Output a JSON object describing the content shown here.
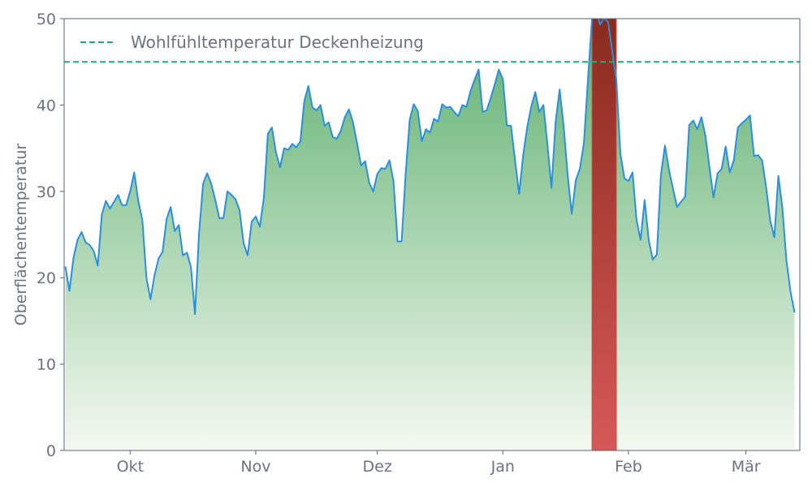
{
  "chart_data": {
    "type": "area",
    "title": "",
    "xlabel": "",
    "ylabel": "Oberflächentemperatur",
    "ylim": [
      0,
      50
    ],
    "y_ticks": [
      0,
      10,
      20,
      30,
      40,
      50
    ],
    "x_range": [
      "2023-09-15",
      "2024-03-14"
    ],
    "x_ticks": [
      {
        "date": "2023-10-01",
        "label": "Okt"
      },
      {
        "date": "2023-11-01",
        "label": "Nov"
      },
      {
        "date": "2023-12-01",
        "label": "Dez"
      },
      {
        "date": "2024-01-01",
        "label": "Jan"
      },
      {
        "date": "2024-02-01",
        "label": "Feb"
      },
      {
        "date": "2024-03-01",
        "label": "Mär"
      }
    ],
    "grid": false,
    "legend_position": "top-left",
    "reference_line": {
      "name": "Wohlfühltemperatur Deckenheizung",
      "y": 45,
      "color": "#1aaf7a",
      "style": "dashed"
    },
    "highlight": {
      "start": "2024-01-23",
      "end": "2024-01-29",
      "colors": [
        "#8a2b1e",
        "#d65858"
      ]
    },
    "line_color": "#2b8fe0",
    "fill_colors": [
      "#5aae6c",
      "#f4f9f0"
    ],
    "series": [
      {
        "values": [
          [
            "2023-09-15",
            21.3
          ],
          [
            "2023-09-16",
            18.5
          ],
          [
            "2023-09-17",
            22.3
          ],
          [
            "2023-09-18",
            24.4
          ],
          [
            "2023-09-19",
            25.3
          ],
          [
            "2023-09-20",
            24.1
          ],
          [
            "2023-09-21",
            23.8
          ],
          [
            "2023-09-22",
            23.1
          ],
          [
            "2023-09-23",
            21.4
          ],
          [
            "2023-09-24",
            27.3
          ],
          [
            "2023-09-25",
            28.9
          ],
          [
            "2023-09-26",
            28.0
          ],
          [
            "2023-09-27",
            28.8
          ],
          [
            "2023-09-28",
            29.6
          ],
          [
            "2023-09-29",
            28.4
          ],
          [
            "2023-09-30",
            28.4
          ],
          [
            "2023-10-01",
            30.0
          ],
          [
            "2023-10-02",
            32.2
          ],
          [
            "2023-10-03",
            28.9
          ],
          [
            "2023-10-04",
            26.7
          ],
          [
            "2023-10-05",
            20.0
          ],
          [
            "2023-10-06",
            17.5
          ],
          [
            "2023-10-07",
            20.3
          ],
          [
            "2023-10-08",
            22.2
          ],
          [
            "2023-10-09",
            23.0
          ],
          [
            "2023-10-10",
            26.8
          ],
          [
            "2023-10-11",
            28.2
          ],
          [
            "2023-10-12",
            25.4
          ],
          [
            "2023-10-13",
            26.1
          ],
          [
            "2023-10-14",
            22.6
          ],
          [
            "2023-10-15",
            22.9
          ],
          [
            "2023-10-16",
            21.2
          ],
          [
            "2023-10-17",
            15.8
          ],
          [
            "2023-10-18",
            25.1
          ],
          [
            "2023-10-19",
            30.9
          ],
          [
            "2023-10-20",
            32.1
          ],
          [
            "2023-10-21",
            30.9
          ],
          [
            "2023-10-22",
            29.0
          ],
          [
            "2023-10-23",
            26.9
          ],
          [
            "2023-10-24",
            26.9
          ],
          [
            "2023-10-25",
            30.0
          ],
          [
            "2023-10-26",
            29.6
          ],
          [
            "2023-10-27",
            29.1
          ],
          [
            "2023-10-28",
            27.8
          ],
          [
            "2023-10-29",
            24.0
          ],
          [
            "2023-10-30",
            22.6
          ],
          [
            "2023-10-31",
            26.5
          ],
          [
            "2023-11-01",
            27.1
          ],
          [
            "2023-11-02",
            25.9
          ],
          [
            "2023-11-03",
            29.3
          ],
          [
            "2023-11-04",
            36.7
          ],
          [
            "2023-11-05",
            37.4
          ],
          [
            "2023-11-06",
            34.5
          ],
          [
            "2023-11-07",
            32.8
          ],
          [
            "2023-11-08",
            35.0
          ],
          [
            "2023-11-09",
            34.8
          ],
          [
            "2023-11-10",
            35.5
          ],
          [
            "2023-11-11",
            35.1
          ],
          [
            "2023-11-12",
            35.8
          ],
          [
            "2023-11-13",
            40.5
          ],
          [
            "2023-11-14",
            42.2
          ],
          [
            "2023-11-15",
            39.7
          ],
          [
            "2023-11-16",
            39.4
          ],
          [
            "2023-11-17",
            40.0
          ],
          [
            "2023-11-18",
            37.6
          ],
          [
            "2023-11-19",
            38.0
          ],
          [
            "2023-11-20",
            36.3
          ],
          [
            "2023-11-21",
            36.1
          ],
          [
            "2023-11-22",
            37.0
          ],
          [
            "2023-11-23",
            38.6
          ],
          [
            "2023-11-24",
            39.5
          ],
          [
            "2023-11-25",
            38.0
          ],
          [
            "2023-11-26",
            35.6
          ],
          [
            "2023-11-27",
            33.0
          ],
          [
            "2023-11-28",
            33.5
          ],
          [
            "2023-11-29",
            31.0
          ],
          [
            "2023-11-30",
            30.0
          ],
          [
            "2023-12-01",
            32.0
          ],
          [
            "2023-12-02",
            32.7
          ],
          [
            "2023-12-03",
            32.6
          ],
          [
            "2023-12-04",
            33.6
          ],
          [
            "2023-12-05",
            31.2
          ],
          [
            "2023-12-06",
            24.2
          ],
          [
            "2023-12-07",
            24.2
          ],
          [
            "2023-12-08",
            32.1
          ],
          [
            "2023-12-09",
            38.3
          ],
          [
            "2023-12-10",
            40.1
          ],
          [
            "2023-12-11",
            39.3
          ],
          [
            "2023-12-12",
            35.8
          ],
          [
            "2023-12-13",
            37.2
          ],
          [
            "2023-12-14",
            36.8
          ],
          [
            "2023-12-15",
            38.4
          ],
          [
            "2023-12-16",
            38.1
          ],
          [
            "2023-12-17",
            40.1
          ],
          [
            "2023-12-18",
            39.7
          ],
          [
            "2023-12-19",
            39.8
          ],
          [
            "2023-12-20",
            39.2
          ],
          [
            "2023-12-21",
            38.7
          ],
          [
            "2023-12-22",
            40.0
          ],
          [
            "2023-12-23",
            39.8
          ],
          [
            "2023-12-24",
            41.6
          ],
          [
            "2023-12-25",
            42.9
          ],
          [
            "2023-12-26",
            44.1
          ],
          [
            "2023-12-27",
            39.2
          ],
          [
            "2023-12-28",
            39.4
          ],
          [
            "2023-12-29",
            40.8
          ],
          [
            "2023-12-30",
            42.4
          ],
          [
            "2023-12-31",
            44.1
          ],
          [
            "2024-01-01",
            43.0
          ],
          [
            "2024-01-02",
            37.6
          ],
          [
            "2024-01-03",
            37.6
          ],
          [
            "2024-01-04",
            33.6
          ],
          [
            "2024-01-05",
            29.7
          ],
          [
            "2024-01-06",
            34.2
          ],
          [
            "2024-01-07",
            37.4
          ],
          [
            "2024-01-08",
            39.8
          ],
          [
            "2024-01-09",
            41.5
          ],
          [
            "2024-01-10",
            39.2
          ],
          [
            "2024-01-11",
            40.0
          ],
          [
            "2024-01-12",
            35.4
          ],
          [
            "2024-01-13",
            30.4
          ],
          [
            "2024-01-14",
            38.0
          ],
          [
            "2024-01-15",
            41.8
          ],
          [
            "2024-01-16",
            37.6
          ],
          [
            "2024-01-17",
            31.9
          ],
          [
            "2024-01-18",
            27.4
          ],
          [
            "2024-01-19",
            31.3
          ],
          [
            "2024-01-20",
            32.6
          ],
          [
            "2024-01-21",
            35.6
          ],
          [
            "2024-01-22",
            43.0
          ],
          [
            "2024-01-23",
            50.0
          ],
          [
            "2024-01-24",
            51.0
          ],
          [
            "2024-01-25",
            49.3
          ],
          [
            "2024-01-26",
            50.1
          ],
          [
            "2024-01-27",
            49.6
          ],
          [
            "2024-01-28",
            46.2
          ],
          [
            "2024-01-29",
            43.0
          ],
          [
            "2024-01-30",
            34.4
          ],
          [
            "2024-01-31",
            31.5
          ],
          [
            "2024-02-01",
            31.2
          ],
          [
            "2024-02-02",
            32.2
          ],
          [
            "2024-02-03",
            26.7
          ],
          [
            "2024-02-04",
            24.4
          ],
          [
            "2024-02-05",
            29.0
          ],
          [
            "2024-02-06",
            24.4
          ],
          [
            "2024-02-07",
            22.1
          ],
          [
            "2024-02-08",
            22.7
          ],
          [
            "2024-02-09",
            31.9
          ],
          [
            "2024-02-10",
            35.3
          ],
          [
            "2024-02-11",
            32.5
          ],
          [
            "2024-02-12",
            30.3
          ],
          [
            "2024-02-13",
            28.2
          ],
          [
            "2024-02-14",
            28.8
          ],
          [
            "2024-02-15",
            29.4
          ],
          [
            "2024-02-16",
            37.7
          ],
          [
            "2024-02-17",
            38.2
          ],
          [
            "2024-02-18",
            37.2
          ],
          [
            "2024-02-19",
            38.6
          ],
          [
            "2024-02-20",
            36.4
          ],
          [
            "2024-02-21",
            32.8
          ],
          [
            "2024-02-22",
            29.3
          ],
          [
            "2024-02-23",
            32.1
          ],
          [
            "2024-02-24",
            32.6
          ],
          [
            "2024-02-25",
            35.2
          ],
          [
            "2024-02-26",
            32.2
          ],
          [
            "2024-02-27",
            33.6
          ],
          [
            "2024-02-28",
            37.4
          ],
          [
            "2024-02-29",
            37.9
          ],
          [
            "2024-03-01",
            38.3
          ],
          [
            "2024-03-02",
            38.8
          ],
          [
            "2024-03-03",
            34.1
          ],
          [
            "2024-03-04",
            34.2
          ],
          [
            "2024-03-05",
            33.6
          ],
          [
            "2024-03-06",
            30.4
          ],
          [
            "2024-03-07",
            26.6
          ],
          [
            "2024-03-08",
            24.7
          ],
          [
            "2024-03-09",
            31.8
          ],
          [
            "2024-03-10",
            28.1
          ],
          [
            "2024-03-11",
            22.0
          ],
          [
            "2024-03-12",
            18.4
          ],
          [
            "2024-03-13",
            16.0
          ]
        ]
      }
    ]
  }
}
